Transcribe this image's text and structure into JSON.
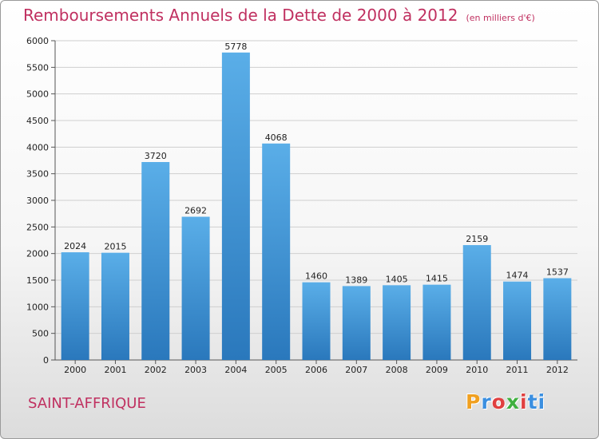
{
  "chart_data": {
    "type": "bar",
    "title": "Remboursements Annuels de la Dette de 2000 à 2012",
    "subtitle": "(en milliers d'€)",
    "categories": [
      "2000",
      "2001",
      "2002",
      "2003",
      "2004",
      "2005",
      "2006",
      "2007",
      "2008",
      "2009",
      "2010",
      "2011",
      "2012"
    ],
    "values": [
      2024,
      2015,
      3720,
      2692,
      5778,
      4068,
      1460,
      1389,
      1405,
      1415,
      2159,
      1474,
      1537
    ],
    "ylim": [
      0,
      6000
    ],
    "yticks": [
      0,
      500,
      1000,
      1500,
      2000,
      2500,
      3000,
      3500,
      4000,
      4500,
      5000,
      5500,
      6000
    ],
    "grid": true,
    "bar_color": "#3a8fd6"
  },
  "city": "SAINT-AFFRIQUE",
  "logo": {
    "letters": [
      "P",
      "r",
      "o",
      "x",
      "i",
      "t",
      "i"
    ],
    "colors": [
      "#f0a020",
      "#3b8fe0",
      "#e04040",
      "#40b040",
      "#e04040",
      "#3b8fe0",
      "#3b8fe0"
    ]
  }
}
